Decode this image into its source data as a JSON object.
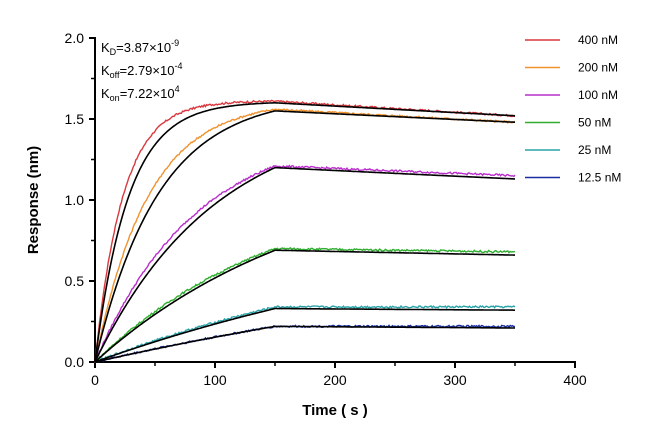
{
  "chart_data": {
    "type": "line",
    "xlabel": "Time ( s )",
    "ylabel": "Response (nm)",
    "xlim": [
      0,
      400
    ],
    "ylim": [
      0,
      2.0
    ],
    "x_ticks": [
      "0",
      "100",
      "200",
      "300",
      "400"
    ],
    "y_ticks": [
      "0.0",
      "0.5",
      "1.0",
      "1.5",
      "2.0"
    ],
    "grid": false,
    "legend_position": "top-right",
    "association_end": 150,
    "dissociation_end": 350,
    "fit_color": "#000000",
    "kinetics": [
      {
        "base": "K",
        "sub": "D",
        "mid": "=3.87×10",
        "sup": "-9"
      },
      {
        "base": "K",
        "sub": "off",
        "mid": "=2.79×10",
        "sup": "-4"
      },
      {
        "base": "K",
        "sub": "on",
        "mid": "=7.22×10",
        "sup": "4"
      }
    ],
    "series": [
      {
        "name": "400 nM",
        "color": "#d9393e",
        "plateau": 1.61,
        "end": 1.52,
        "fit_plateau": 1.6,
        "fit_end": 1.52,
        "k": 0.04
      },
      {
        "name": "200 nM",
        "color": "#f0922e",
        "plateau": 1.56,
        "end": 1.48,
        "fit_plateau": 1.55,
        "fit_end": 1.48,
        "k": 0.021
      },
      {
        "name": "100 nM",
        "color": "#b92ecb",
        "plateau": 1.21,
        "end": 1.15,
        "fit_plateau": 1.2,
        "fit_end": 1.13,
        "k": 0.011
      },
      {
        "name": "50 nM",
        "color": "#2fae2f",
        "plateau": 0.7,
        "end": 0.68,
        "fit_plateau": 0.69,
        "fit_end": 0.66,
        "k": 0.006
      },
      {
        "name": "25 nM",
        "color": "#2aa3a8",
        "plateau": 0.34,
        "end": 0.34,
        "fit_plateau": 0.33,
        "fit_end": 0.32,
        "k": 0.003
      },
      {
        "name": "12.5 nM",
        "color": "#1a2ea0",
        "plateau": 0.22,
        "end": 0.22,
        "fit_plateau": 0.22,
        "fit_end": 0.21,
        "k": 0.002
      }
    ]
  }
}
